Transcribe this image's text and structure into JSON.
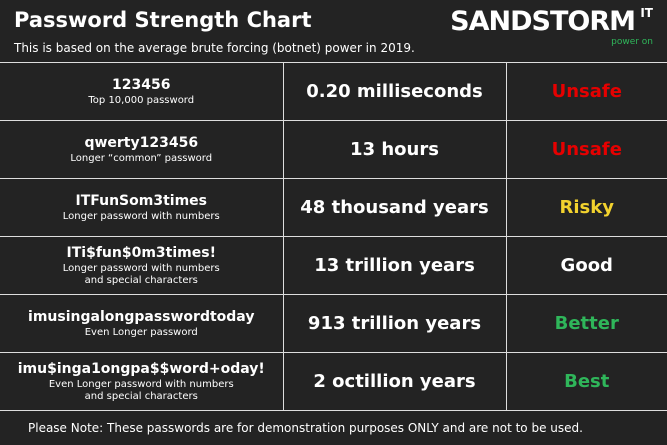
{
  "header": {
    "title": "Password Strength Chart",
    "subtitle": "This is based on the average brute forcing (botnet) power in 2019.",
    "logo": {
      "name": "SANDSTORM",
      "superscript": "IT",
      "tagline": "power on"
    }
  },
  "table": {
    "rows": [
      {
        "password": "123456",
        "description": [
          "Top 10,000 password"
        ],
        "time": "0.20 milliseconds",
        "rating": "Unsafe",
        "color": "#e60000"
      },
      {
        "password": "qwerty123456",
        "description": [
          "Longer “common” password"
        ],
        "time": "13 hours",
        "rating": "Unsafe",
        "color": "#e60000"
      },
      {
        "password": "ITFunSom3times",
        "description": [
          "Longer password with numbers"
        ],
        "time": "48 thousand years",
        "rating": "Risky",
        "color": "#f2d22e"
      },
      {
        "password": "ITi$fun$0m3times!",
        "description": [
          "Longer password with numbers",
          "and special characters"
        ],
        "time": "13 trillion years",
        "rating": "Good",
        "color": "#ffffff"
      },
      {
        "password": "imusingalongpasswordtoday",
        "description": [
          "Even Longer password"
        ],
        "time": "913 trillion years",
        "rating": "Better",
        "color": "#2fb65a"
      },
      {
        "password": "imu$inga1ongpa$$word+oday!",
        "description": [
          "Even Longer password with numbers",
          "and special characters"
        ],
        "time": "2 octillion years",
        "rating": "Best",
        "color": "#2fb65a"
      }
    ]
  },
  "footer": {
    "note": "Please Note: These passwords are for demonstration purposes ONLY and are not to be used."
  }
}
